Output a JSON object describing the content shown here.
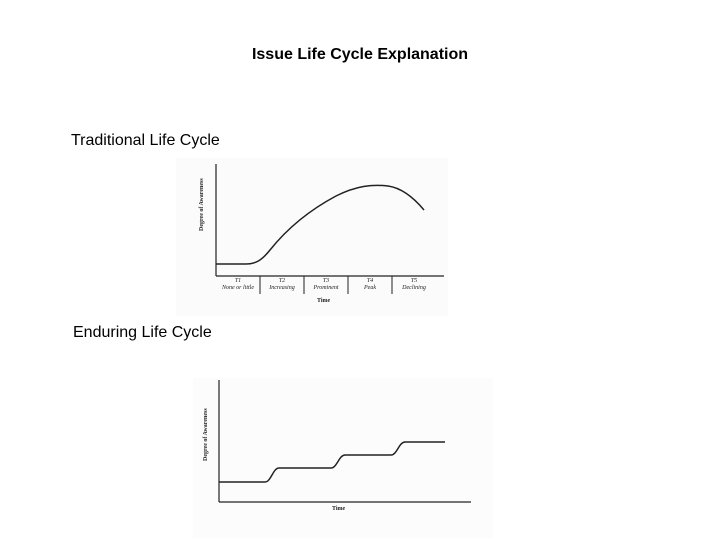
{
  "slide": {
    "title": "Issue Life Cycle Explanation"
  },
  "traditional": {
    "label": "Traditional Life Cycle",
    "y_axis_label": "Degree of Awareness",
    "x_axis_label": "Time",
    "phases": [
      {
        "code": "T1",
        "name": "None or little"
      },
      {
        "code": "T2",
        "name": "Increasing"
      },
      {
        "code": "T3",
        "name": "Prominent"
      },
      {
        "code": "T4",
        "name": "Peak"
      },
      {
        "code": "T5",
        "name": "Declining"
      }
    ]
  },
  "enduring": {
    "label": "Enduring Life Cycle",
    "y_axis_label": "Degree of Awareness",
    "x_axis_label": "Time"
  }
}
